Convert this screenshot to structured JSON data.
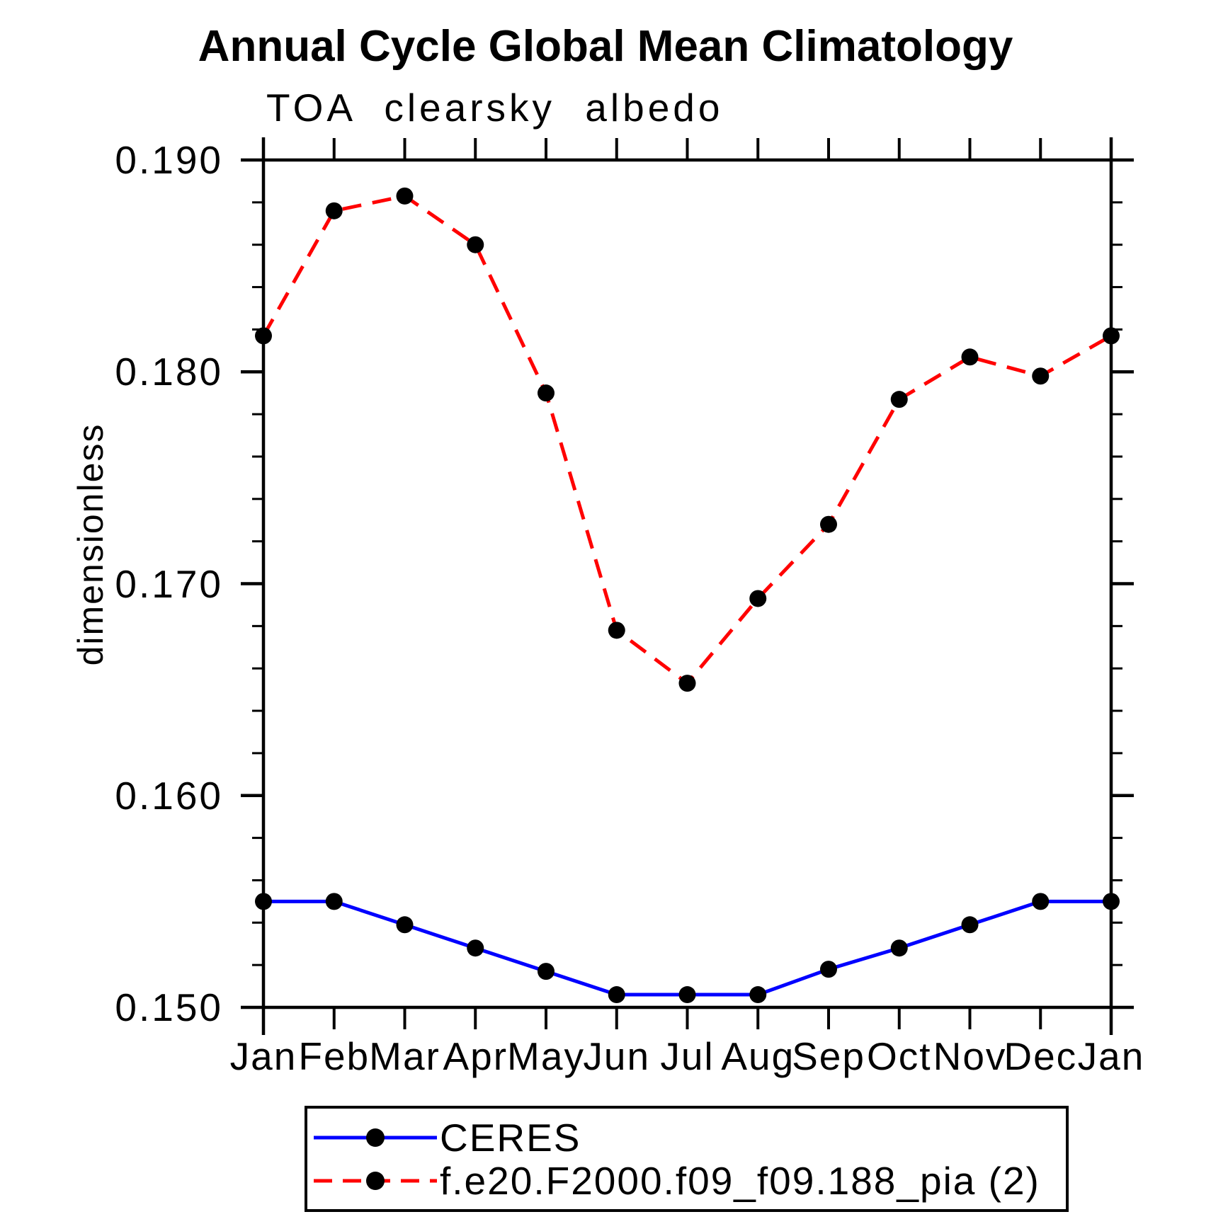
{
  "chart_data": {
    "type": "line",
    "title": "Annual Cycle Global Mean Climatology",
    "subtitle": "TOA clearsky albedo",
    "ylabel": "dimensionless",
    "x_categories": [
      "Jan",
      "Feb",
      "Mar",
      "Apr",
      "May",
      "Jun",
      "Jul",
      "Aug",
      "Sep",
      "Oct",
      "Nov",
      "Dec",
      "Jan"
    ],
    "series": [
      {
        "name": "CERES",
        "color": "#0000ff",
        "line_style": "solid",
        "marker": "filled-circle",
        "marker_color": "#000000",
        "values": [
          0.155,
          0.155,
          0.1539,
          0.1528,
          0.1517,
          0.1506,
          0.1506,
          0.1506,
          0.1518,
          0.1528,
          0.1539,
          0.155,
          0.155
        ]
      },
      {
        "name": "f.e20.F2000.f09_f09.188_pia (2)",
        "color": "#ff0000",
        "line_style": "dashed",
        "marker": "filled-circle",
        "marker_color": "#000000",
        "values": [
          0.1817,
          0.1876,
          0.1883,
          0.186,
          0.179,
          0.1678,
          0.1653,
          0.1693,
          0.1728,
          0.1787,
          0.1807,
          0.1798,
          0.1817
        ]
      }
    ],
    "ylim": [
      0.15,
      0.19
    ],
    "ytick_major": [
      0.15,
      0.16,
      0.17,
      0.18,
      0.19
    ],
    "ytick_labels": [
      "0.150",
      "0.160",
      "0.170",
      "0.180",
      "0.190"
    ],
    "ytick_minor_step": 0.002,
    "grid": "off",
    "legend_position": "bottom-left-box",
    "axis_color": "#000000",
    "background_color": "#ffffff"
  },
  "legend": {
    "entries": [
      {
        "label": "CERES"
      },
      {
        "label": "f.e20.F2000.f09_f09.188_pia (2)"
      }
    ]
  }
}
